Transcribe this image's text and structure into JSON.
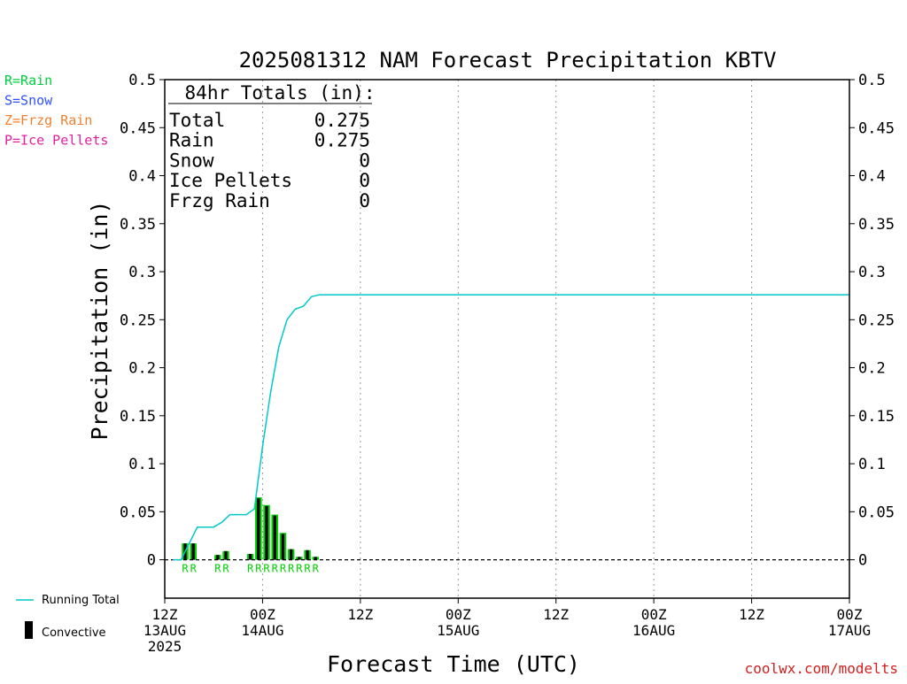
{
  "chart_data": {
    "type": "bar",
    "title": "2025081312 NAM Forecast Precipitation KBTV",
    "xlabel": "Forecast Time (UTC)",
    "ylabel": "Precipitation (in)",
    "ylim": [
      -0.04,
      0.5
    ],
    "xlim_hours": [
      0,
      84
    ],
    "y_ticks": [
      0,
      0.05,
      0.1,
      0.15,
      0.2,
      0.25,
      0.3,
      0.35,
      0.4,
      0.45,
      0.5
    ],
    "y_tick_labels": [
      "0",
      "0.05",
      "0.1",
      "0.15",
      "0.2",
      "0.25",
      "0.3",
      "0.35",
      "0.4",
      "0.45",
      "0.5"
    ],
    "x_ticks": [
      {
        "hour": 0,
        "lines": [
          "12Z",
          "13AUG",
          "2025"
        ]
      },
      {
        "hour": 12,
        "lines": [
          "00Z",
          "14AUG"
        ]
      },
      {
        "hour": 24,
        "lines": [
          "12Z"
        ]
      },
      {
        "hour": 36,
        "lines": [
          "00Z",
          "15AUG"
        ]
      },
      {
        "hour": 48,
        "lines": [
          "12Z"
        ]
      },
      {
        "hour": 60,
        "lines": [
          "00Z",
          "16AUG"
        ]
      },
      {
        "hour": 72,
        "lines": [
          "12Z"
        ]
      },
      {
        "hour": 84,
        "lines": [
          "00Z",
          "17AUG"
        ]
      }
    ],
    "grid": "vertical dotted",
    "bars": [
      {
        "hour": 3,
        "total": 0.017,
        "convective": 0.017,
        "ptype": "R"
      },
      {
        "hour": 4,
        "total": 0.017,
        "convective": 0.017,
        "ptype": "R"
      },
      {
        "hour": 7,
        "total": 0.005,
        "convective": 0.005,
        "ptype": "R"
      },
      {
        "hour": 8,
        "total": 0.009,
        "convective": 0.009,
        "ptype": "R"
      },
      {
        "hour": 11,
        "total": 0.006,
        "convective": 0.006,
        "ptype": "R"
      },
      {
        "hour": 12,
        "total": 0.065,
        "convective": 0.064,
        "ptype": "R"
      },
      {
        "hour": 13,
        "total": 0.057,
        "convective": 0.056,
        "ptype": "R"
      },
      {
        "hour": 14,
        "total": 0.047,
        "convective": 0.046,
        "ptype": "R"
      },
      {
        "hour": 15,
        "total": 0.028,
        "convective": 0.027,
        "ptype": "R"
      },
      {
        "hour": 16,
        "total": 0.011,
        "convective": 0.011,
        "ptype": "R"
      },
      {
        "hour": 17,
        "total": 0.003,
        "convective": 0.003,
        "ptype": "R"
      },
      {
        "hour": 18,
        "total": 0.01,
        "convective": 0.01,
        "ptype": "R"
      },
      {
        "hour": 19,
        "total": 0.003,
        "convective": 0.003,
        "ptype": "R"
      }
    ],
    "running_total": {
      "name": "Running Total",
      "color": "#00c8c8",
      "points": [
        [
          1,
          0
        ],
        [
          2,
          0
        ],
        [
          3,
          0.017
        ],
        [
          4,
          0.034
        ],
        [
          5,
          0.034
        ],
        [
          6,
          0.034
        ],
        [
          7,
          0.039
        ],
        [
          8,
          0.047
        ],
        [
          9,
          0.047
        ],
        [
          10,
          0.047
        ],
        [
          11,
          0.053
        ],
        [
          12,
          0.118
        ],
        [
          13,
          0.175
        ],
        [
          14,
          0.222
        ],
        [
          15,
          0.25
        ],
        [
          16,
          0.261
        ],
        [
          17,
          0.264
        ],
        [
          18,
          0.274
        ],
        [
          19,
          0.276
        ],
        [
          84,
          0.276
        ]
      ]
    },
    "convective": {
      "name": "Convective",
      "color": "#000000"
    },
    "rain_bar_color": "#00d000",
    "totals_box": {
      "header": "84hr Totals (in):",
      "rows": [
        {
          "label": "Total",
          "value": "0.275"
        },
        {
          "label": "Rain",
          "value": "0.275"
        },
        {
          "label": "Snow",
          "value": "0"
        },
        {
          "label": "Ice Pellets",
          "value": "0"
        },
        {
          "label": "Frzg Rain",
          "value": "0"
        }
      ]
    },
    "ptype_legend": [
      {
        "text": "R=Rain",
        "color": "#00d040"
      },
      {
        "text": "S=Snow",
        "color": "#3050ff"
      },
      {
        "text": "Z=Frzg Rain",
        "color": "#f08030"
      },
      {
        "text": "P=Ice Pellets",
        "color": "#e020a0"
      }
    ],
    "credit": "coolwx.com/modelts"
  }
}
